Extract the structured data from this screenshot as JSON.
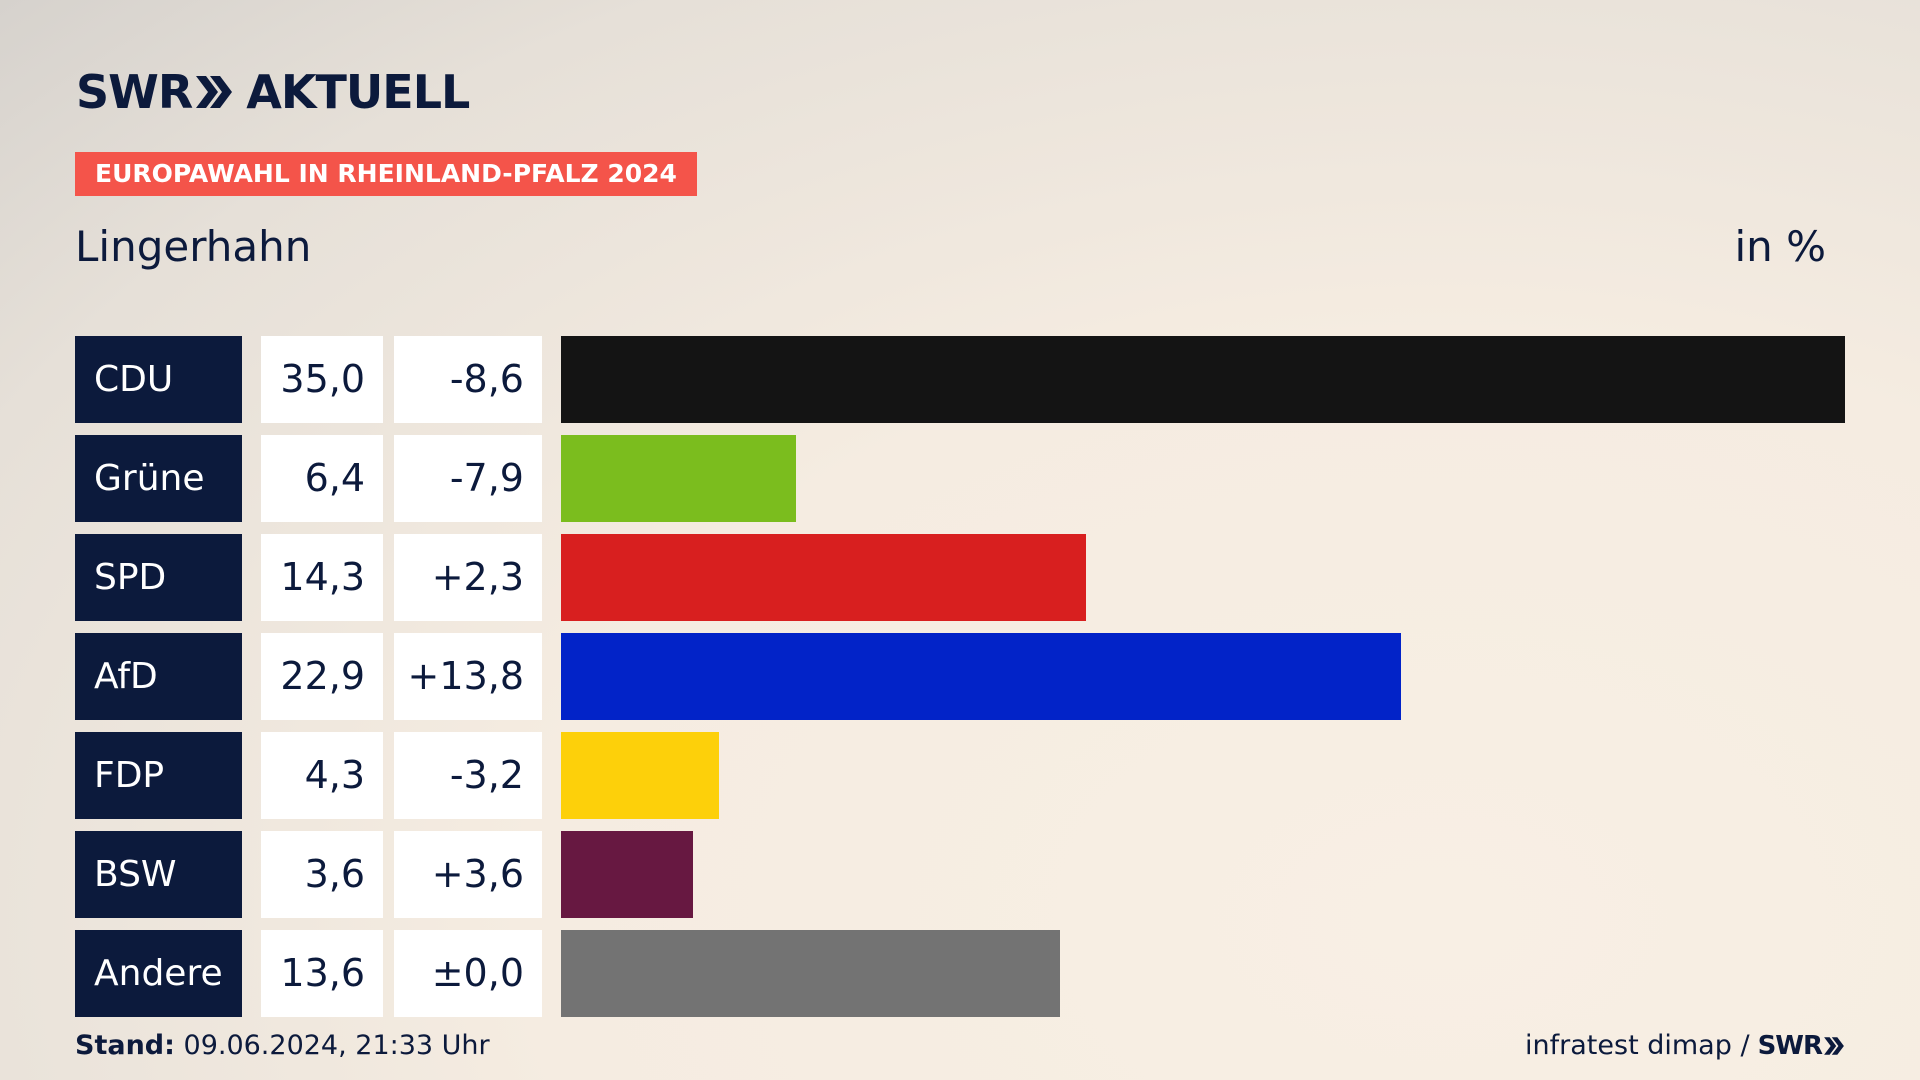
{
  "header": {
    "logo_brand": "SWR",
    "logo_section": "AKTUELL",
    "badge": "EUROPAWAHL IN RHEINLAND-PFALZ 2024",
    "subtitle": "Lingerhahn",
    "unit": "in %"
  },
  "footer": {
    "stand_label": "Stand:",
    "stand_value": "09.06.2024, 21:33 Uhr",
    "source": "infratest dimap /",
    "source_brand": "SWR"
  },
  "chart_data": {
    "type": "bar",
    "orientation": "horizontal",
    "categories": [
      "CDU",
      "Grüne",
      "SPD",
      "AfD",
      "FDP",
      "BSW",
      "Andere"
    ],
    "values": [
      35.0,
      6.4,
      14.3,
      22.9,
      4.3,
      3.6,
      13.6
    ],
    "value_labels": [
      "35,0",
      "6,4",
      "14,3",
      "22,9",
      "4,3",
      "3,6",
      "13,6"
    ],
    "diff_labels": [
      "-8,6",
      "-7,9",
      "+2,3",
      "+13,8",
      "-3,2",
      "+3,6",
      "±0,0"
    ],
    "colors": [
      "#141414",
      "#7bbd1e",
      "#d81f1f",
      "#0223c8",
      "#fdd00a",
      "#671841",
      "#737373"
    ],
    "xlim": [
      0,
      35.0
    ]
  }
}
